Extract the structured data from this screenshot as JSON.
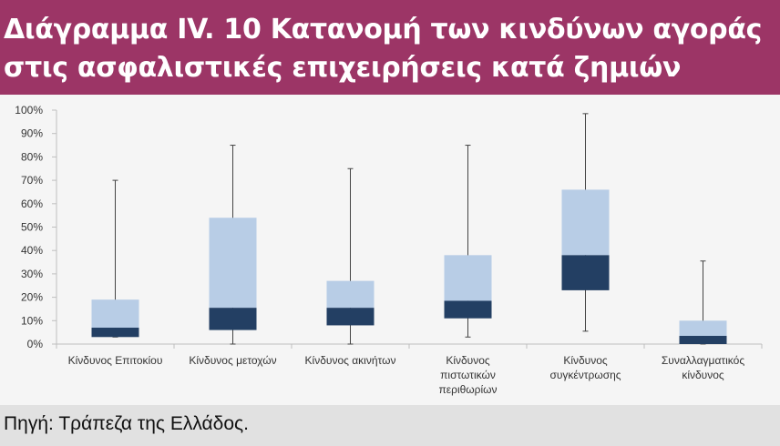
{
  "title_lines": [
    "Διάγραμμα IV. 10 Κατανομή των κινδύνων αγοράς",
    "στις ασφαλιστικές επιχειρήσεις κατά ζημιών"
  ],
  "source": "Πηγή: Τράπεζα της Ελλάδος.",
  "colors": {
    "header_bg": "#9c3566",
    "box_upper": "#b8cde6",
    "box_lower": "#233f63",
    "whisker": "#444444",
    "axis": "#bfbfbf"
  },
  "chart_data": {
    "type": "box",
    "title": "",
    "xlabel": "",
    "ylabel": "",
    "ylim": [
      0,
      100
    ],
    "y_unit": "%",
    "yticks": [
      0,
      10,
      20,
      30,
      40,
      50,
      60,
      70,
      80,
      90,
      100
    ],
    "ytick_labels": [
      "0%",
      "10%",
      "20%",
      "30%",
      "40%",
      "50%",
      "60%",
      "70%",
      "80%",
      "90%",
      "100%"
    ],
    "grid": false,
    "legend": "none",
    "categories": [
      {
        "label_lines": [
          "Κίνδυνος Επιτοκίου"
        ],
        "min": 3,
        "q1": 3,
        "median": 7,
        "q3": 19,
        "max": 70
      },
      {
        "label_lines": [
          "Κίνδυνος μετοχών"
        ],
        "min": 0,
        "q1": 6,
        "median": 15.5,
        "q3": 54,
        "max": 85
      },
      {
        "label_lines": [
          "Κίνδυνος ακινήτων"
        ],
        "min": 0,
        "q1": 8,
        "median": 15.5,
        "q3": 27,
        "max": 75
      },
      {
        "label_lines": [
          "Κίνδυνος",
          "πιστωτικών",
          "περιθωρίων"
        ],
        "min": 3,
        "q1": 11,
        "median": 18.5,
        "q3": 38,
        "max": 85
      },
      {
        "label_lines": [
          "Κίνδυνος",
          "συγκέντρωσης"
        ],
        "min": 5.5,
        "q1": 23,
        "median": 38,
        "q3": 66,
        "max": 98.5
      },
      {
        "label_lines": [
          "Συναλλαγματικός",
          "κίνδυνος"
        ],
        "min": 0,
        "q1": 0,
        "median": 3.5,
        "q3": 10,
        "max": 35.5
      }
    ]
  }
}
